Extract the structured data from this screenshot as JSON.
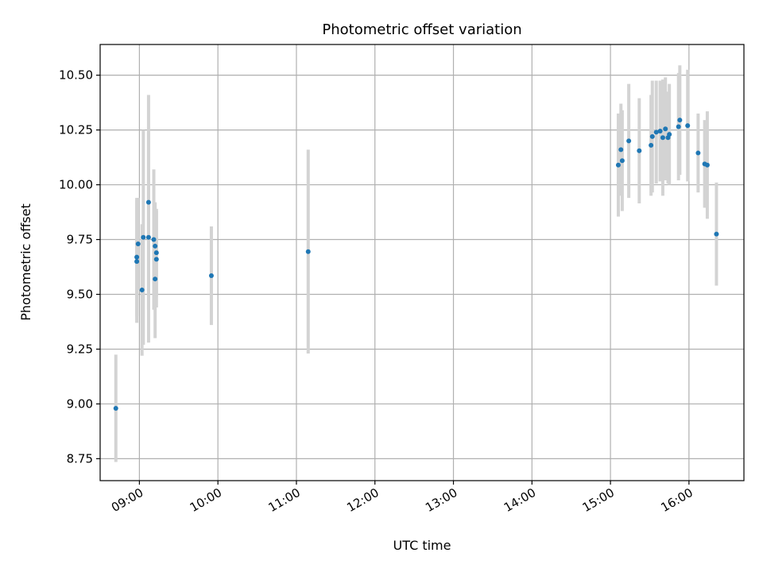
{
  "chart_data": {
    "type": "scatter",
    "title": "Photometric offset variation",
    "xlabel": "UTC time",
    "ylabel": "Photometric offset",
    "x_unit": "UTC time (HH:MM)",
    "xlim": [
      "08:30",
      "16:42"
    ],
    "ylim": [
      8.65,
      10.64
    ],
    "x_ticks": [
      "09:00",
      "10:00",
      "11:00",
      "12:00",
      "13:00",
      "14:00",
      "15:00",
      "16:00"
    ],
    "y_ticks": [
      "8.75",
      "9.00",
      "9.25",
      "9.50",
      "9.75",
      "10.00",
      "10.25",
      "10.50"
    ],
    "grid": true,
    "colors": {
      "points": "#1f77b4",
      "errorbars": "#d3d3d3",
      "grid": "#b0b0b0"
    },
    "points": [
      {
        "x": "08:42",
        "y": 8.98,
        "err": 0.245
      },
      {
        "x": "08:58",
        "y": 9.65,
        "err": 0.28
      },
      {
        "x": "08:58",
        "y": 9.67,
        "err": 0.27
      },
      {
        "x": "08:59",
        "y": 9.73,
        "err": 0.21
      },
      {
        "x": "09:02",
        "y": 9.52,
        "err": 0.3
      },
      {
        "x": "09:03",
        "y": 9.76,
        "err": 0.49
      },
      {
        "x": "09:07",
        "y": 9.76,
        "err": 0.48
      },
      {
        "x": "09:07",
        "y": 9.92,
        "err": 0.49
      },
      {
        "x": "09:11",
        "y": 9.75,
        "err": 0.32
      },
      {
        "x": "09:12",
        "y": 9.72,
        "err": 0.2
      },
      {
        "x": "09:12",
        "y": 9.57,
        "err": 0.27
      },
      {
        "x": "09:13",
        "y": 9.69,
        "err": 0.2
      },
      {
        "x": "09:13",
        "y": 9.66,
        "err": 0.22
      },
      {
        "x": "09:55",
        "y": 9.585,
        "err": 0.225
      },
      {
        "x": "11:09",
        "y": 9.695,
        "err": 0.465
      },
      {
        "x": "15:06",
        "y": 10.09,
        "err": 0.235
      },
      {
        "x": "15:08",
        "y": 10.16,
        "err": 0.21
      },
      {
        "x": "15:09",
        "y": 10.11,
        "err": 0.23
      },
      {
        "x": "15:14",
        "y": 10.2,
        "err": 0.26
      },
      {
        "x": "15:22",
        "y": 10.155,
        "err": 0.24
      },
      {
        "x": "15:31",
        "y": 10.18,
        "err": 0.23
      },
      {
        "x": "15:32",
        "y": 10.22,
        "err": 0.255
      },
      {
        "x": "15:35",
        "y": 10.24,
        "err": 0.235
      },
      {
        "x": "15:38",
        "y": 10.245,
        "err": 0.23
      },
      {
        "x": "15:40",
        "y": 10.215,
        "err": 0.265
      },
      {
        "x": "15:42",
        "y": 10.255,
        "err": 0.235
      },
      {
        "x": "15:44",
        "y": 10.215,
        "err": 0.21
      },
      {
        "x": "15:45",
        "y": 10.23,
        "err": 0.23
      },
      {
        "x": "15:52",
        "y": 10.265,
        "err": 0.245
      },
      {
        "x": "15:53",
        "y": 10.295,
        "err": 0.25
      },
      {
        "x": "15:59",
        "y": 10.27,
        "err": 0.255
      },
      {
        "x": "16:07",
        "y": 10.145,
        "err": 0.18
      },
      {
        "x": "16:12",
        "y": 10.095,
        "err": 0.2
      },
      {
        "x": "16:14",
        "y": 10.09,
        "err": 0.245
      },
      {
        "x": "16:21",
        "y": 9.775,
        "err": 0.235
      }
    ]
  }
}
